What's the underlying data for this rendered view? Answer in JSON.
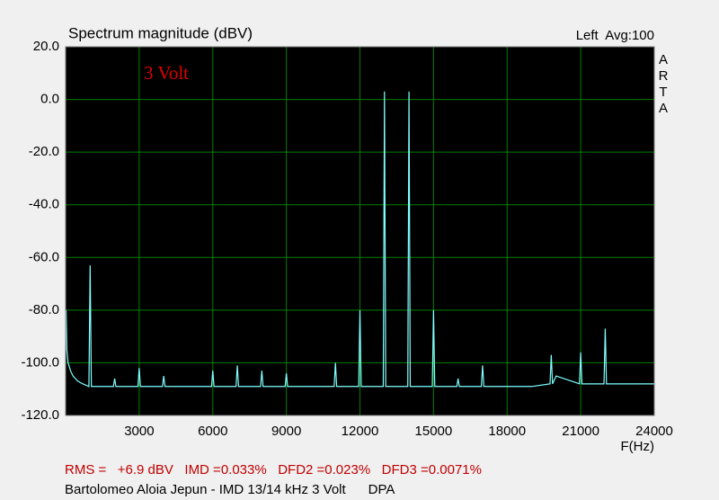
{
  "chart_data": {
    "type": "line",
    "title": "Spectrum magnitude (dBV)",
    "channel_label": "Left  Avg:100",
    "brand": "ARTA",
    "annotation": "3 Volt",
    "x_label": "F(Hz)",
    "footer_stats": "RMS =   +6.9 dBV   IMD =0.033%   DFD2 =0.023%   DFD3 =0.0071%",
    "footer_caption": "Bartolomeo Aloia Jepun - IMD 13/14 kHz 3 Volt      DPA",
    "xlim": [
      0,
      24000
    ],
    "xticks": [
      3000,
      6000,
      9000,
      12000,
      15000,
      18000,
      21000,
      24000
    ],
    "ylim": [
      -120,
      20
    ],
    "yticks": [
      {
        "value": 20,
        "label": "20.0"
      },
      {
        "value": 0,
        "label": "0.0"
      },
      {
        "value": -20,
        "label": "-20.0"
      },
      {
        "value": -40,
        "label": "-40.0"
      },
      {
        "value": -60,
        "label": "-60.0"
      },
      {
        "value": -80,
        "label": "-80.0"
      },
      {
        "value": -100,
        "label": "-100.0"
      },
      {
        "value": -120,
        "label": "-120.0"
      }
    ],
    "grid": true,
    "grid_color": "#008000",
    "background": "#000000",
    "x": [
      20,
      50,
      100,
      200,
      300,
      400,
      500,
      700,
      950,
      1000,
      1050,
      1500,
      1950,
      2000,
      2050,
      2950,
      3000,
      3050,
      3950,
      4000,
      4050,
      5000,
      5950,
      6000,
      6050,
      6950,
      7000,
      7050,
      7950,
      8000,
      8050,
      8950,
      9000,
      9050,
      10000,
      10950,
      11000,
      11050,
      11950,
      12000,
      12050,
      12950,
      13000,
      13050,
      13950,
      14000,
      14050,
      14950,
      15000,
      15050,
      15950,
      16000,
      16050,
      16950,
      17000,
      17050,
      18000,
      19000,
      19750,
      19800,
      19850,
      20000,
      20950,
      21000,
      21050,
      21950,
      22000,
      22050,
      23000,
      24000
    ],
    "series": [
      {
        "color": "#80ffff",
        "values": [
          -80,
          -95,
          -100,
          -103,
          -105,
          -106,
          -107,
          -108,
          -109,
          -63,
          -109,
          -109,
          -109,
          -106,
          -109,
          -109,
          -102,
          -109,
          -109,
          -105,
          -109,
          -109,
          -109,
          -103,
          -109,
          -109,
          -101,
          -109,
          -109,
          -103,
          -109,
          -109,
          -104,
          -109,
          -109,
          -109,
          -100,
          -109,
          -109,
          -80,
          -109,
          -109,
          3,
          -109,
          -109,
          3,
          -109,
          -109,
          -80,
          -109,
          -109,
          -106,
          -109,
          -109,
          -101,
          -109,
          -109,
          -109,
          -108,
          -97,
          -108,
          -105,
          -108,
          -96,
          -108,
          -108,
          -87,
          -108,
          -108,
          -108
        ]
      }
    ]
  }
}
